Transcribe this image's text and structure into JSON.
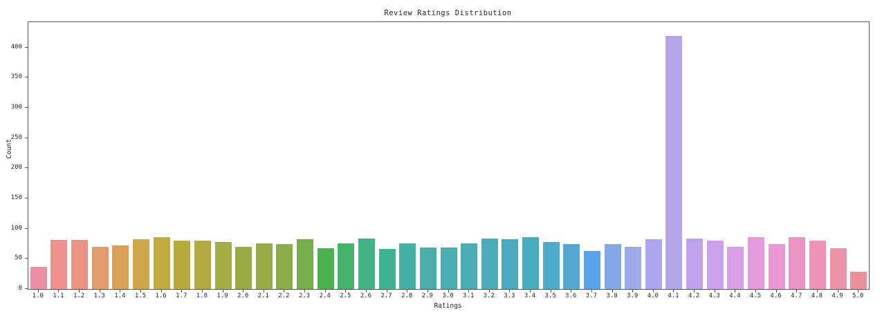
{
  "chart_data": {
    "type": "bar",
    "title": "Review Ratings Distribution",
    "xlabel": "Ratings",
    "ylabel": "Count",
    "categories": [
      "1.0",
      "1.1",
      "1.2",
      "1.3",
      "1.4",
      "1.5",
      "1.6",
      "1.7",
      "1.8",
      "1.9",
      "2.0",
      "2.1",
      "2.2",
      "2.3",
      "2.4",
      "2.5",
      "2.6",
      "2.7",
      "2.8",
      "2.9",
      "3.0",
      "3.1",
      "3.2",
      "3.3",
      "3.4",
      "3.5",
      "3.6",
      "3.7",
      "3.8",
      "3.9",
      "4.0",
      "4.1",
      "4.2",
      "4.3",
      "4.4",
      "4.5",
      "4.6",
      "4.7",
      "4.8",
      "4.9",
      "5.0"
    ],
    "values": [
      37,
      81,
      81,
      70,
      72,
      82,
      86,
      80,
      80,
      78,
      70,
      76,
      74,
      82,
      68,
      76,
      84,
      67,
      76,
      69,
      69,
      76,
      84,
      82,
      86,
      78,
      74,
      63,
      75,
      70,
      83,
      419,
      84,
      80,
      70,
      86,
      74,
      86,
      80,
      68,
      29
    ],
    "bar_colors": [
      "#ec8fa3",
      "#ec9190",
      "#ea9383",
      "#e39a6d",
      "#daa057",
      "#cfa64a",
      "#c3aa3f",
      "#b7ab3e",
      "#b0aa40",
      "#a4ab43",
      "#9da948",
      "#97ab49",
      "#8bad4a",
      "#73ae4b",
      "#4bb14f",
      "#46b26d",
      "#41b384",
      "#40b294",
      "#43b1a0",
      "#47afaa",
      "#49adb1",
      "#4aabb4",
      "#4aaaba",
      "#4ba9bf",
      "#4aabbf",
      "#4fa9c8",
      "#55a7d4",
      "#5aa3e6",
      "#83a8e8",
      "#9fa9ec",
      "#aba4ee",
      "#b5a4ea",
      "#bfa2ec",
      "#cba0ea",
      "#d99de6",
      "#e399de",
      "#e996d2",
      "#ec95c5",
      "#ec93b7",
      "#ec92a8",
      "#e9909a"
    ],
    "yticks": [
      0,
      50,
      100,
      150,
      200,
      250,
      300,
      350,
      400
    ],
    "ylim": [
      0,
      442
    ],
    "grid": false,
    "legend": "none",
    "frame_color": "#555555",
    "text_color": "#262626",
    "background_color": "#ffffff"
  }
}
